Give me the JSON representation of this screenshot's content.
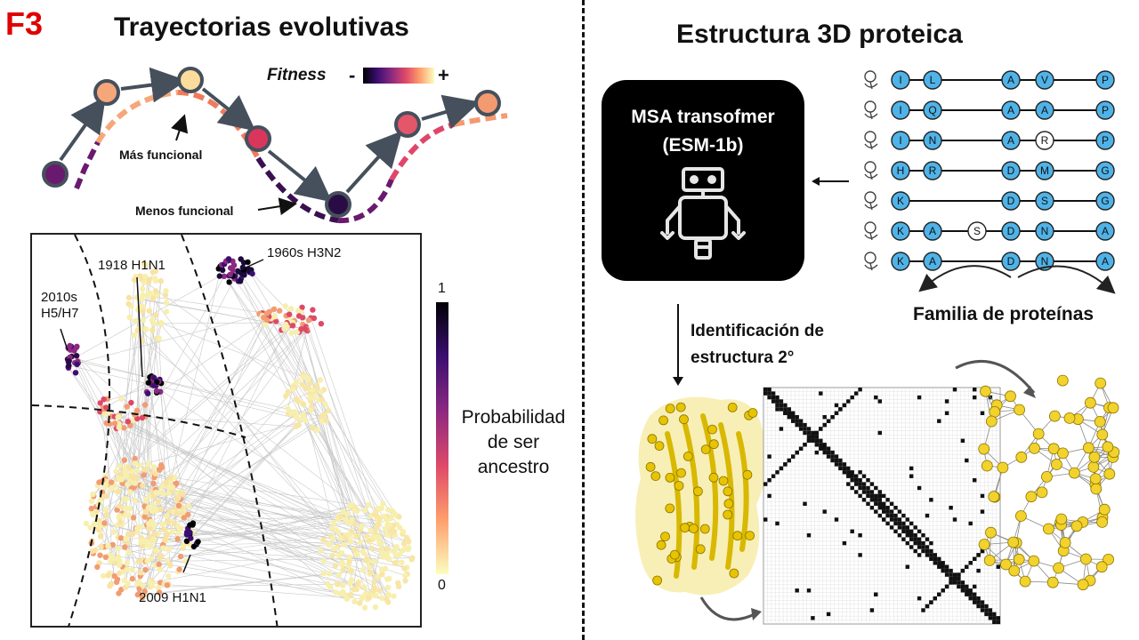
{
  "figure_label": "F3",
  "left_panel": {
    "title": "Trayectorias evolutivas",
    "fitness_label": "Fitness",
    "fitness_minus": "-",
    "fitness_plus": "+",
    "mas_funcional": "Más funcional",
    "menos_funcional": "Menos funcional",
    "strains": {
      "s1918": "1918 H1N1",
      "s1960": "1960s H3N2",
      "s2010a": "2010s",
      "s2010b": "H5/H7",
      "s2009": "2009 H1N1"
    },
    "colorbar_top": "1",
    "colorbar_bottom": "0",
    "colorbar_label_1": "Probabilidad",
    "colorbar_label_2": "de ser",
    "colorbar_label_3": "ancestro"
  },
  "right_panel": {
    "title": "Estructura 3D proteica",
    "model_line1": "MSA transofmer",
    "model_line2": "(ESM-1b)",
    "family_label": "Familia de proteínas",
    "ident_line1": "Identificación de",
    "ident_line2": "estructura 2°",
    "alignment": [
      [
        "I",
        "L",
        "",
        "A",
        "V",
        "P"
      ],
      [
        "I",
        "Q",
        "",
        "A",
        "A",
        "P"
      ],
      [
        "I",
        "N",
        "",
        "A",
        "R",
        "P"
      ],
      [
        "H",
        "R",
        "",
        "D",
        "M",
        "G"
      ],
      [
        "K",
        "",
        "",
        "D",
        "S",
        "G"
      ],
      [
        "K",
        "A",
        "S",
        "D",
        "N",
        "A"
      ],
      [
        "K",
        "A",
        "",
        "D",
        "N",
        "A"
      ]
    ],
    "insert_residues": [
      "R",
      "S"
    ],
    "organisms": [
      "human-icon",
      "monkey-icon",
      "mouse-icon",
      "fish-icon",
      "jellyfish-icon",
      "plant-icon",
      "bacterium-icon"
    ]
  },
  "colors": {
    "accent_red": "#e00000",
    "residue_blue": "#4fb3e8",
    "node_yellow": "#f2d22c",
    "map_cream": "#f7efad"
  }
}
